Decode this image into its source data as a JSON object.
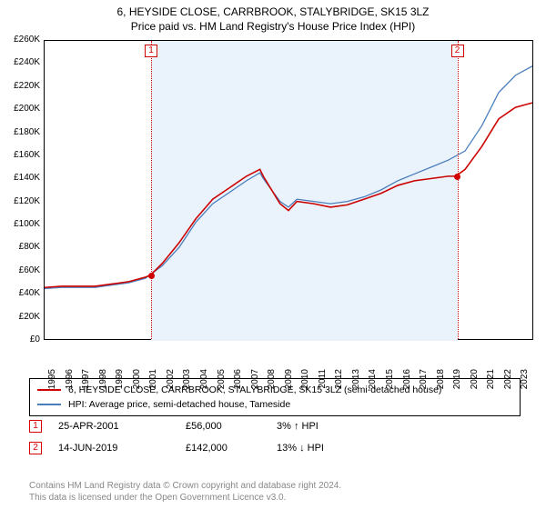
{
  "chart": {
    "title_line1": "6, HEYSIDE CLOSE, CARRBROOK, STALYBRIDGE, SK15 3LZ",
    "title_line2": "Price paid vs. HM Land Registry's House Price Index (HPI)",
    "type": "line",
    "background_color": "#ffffff",
    "shaded_region_color": "#eaf2fb",
    "shaded_region_x": [
      2001.31,
      2019.45
    ],
    "ylim": [
      0,
      260000
    ],
    "ytick_step": 20000,
    "ylabels": [
      "£0",
      "£20K",
      "£40K",
      "£60K",
      "£80K",
      "£100K",
      "£120K",
      "£140K",
      "£160K",
      "£180K",
      "£200K",
      "£220K",
      "£240K",
      "£260K"
    ],
    "xlim": [
      1995,
      2024
    ],
    "xticks": [
      1995,
      1996,
      1997,
      1998,
      1999,
      2000,
      2001,
      2002,
      2003,
      2004,
      2005,
      2006,
      2007,
      2008,
      2009,
      2010,
      2011,
      2012,
      2013,
      2014,
      2015,
      2016,
      2017,
      2018,
      2019,
      2020,
      2021,
      2022,
      2023
    ],
    "series": [
      {
        "name": "property",
        "label": "6, HEYSIDE CLOSE, CARRBROOK, STALYBRIDGE, SK15 3LZ (semi-detached house)",
        "color": "#cc0000",
        "line_width": 1.6,
        "x": [
          1995,
          1996,
          1997,
          1998,
          1999,
          2000,
          2001,
          2001.31,
          2002,
          2003,
          2004,
          2005,
          2006,
          2007,
          2007.8,
          2008,
          2009,
          2009.5,
          2010,
          2011,
          2012,
          2013,
          2014,
          2015,
          2016,
          2017,
          2018,
          2019,
          2019.45,
          2020,
          2021,
          2022,
          2023,
          2024
        ],
        "y": [
          45000,
          46000,
          46000,
          46000,
          48000,
          50000,
          54000,
          56000,
          66000,
          84000,
          105000,
          122000,
          132000,
          142000,
          148000,
          142000,
          118000,
          112000,
          120000,
          118000,
          115000,
          117000,
          122000,
          127000,
          134000,
          138000,
          140000,
          142000,
          142000,
          148000,
          168000,
          192000,
          202000,
          206000
        ]
      },
      {
        "name": "hpi",
        "label": "HPI: Average price, semi-detached house, Tameside",
        "color": "#4a7ebb",
        "line_width": 1.3,
        "x": [
          1995,
          1996,
          1997,
          1998,
          1999,
          2000,
          2001,
          2002,
          2003,
          2004,
          2005,
          2006,
          2007,
          2007.8,
          2008,
          2009,
          2009.5,
          2010,
          2011,
          2012,
          2013,
          2014,
          2015,
          2016,
          2017,
          2018,
          2019,
          2020,
          2021,
          2022,
          2023,
          2024
        ],
        "y": [
          44000,
          45000,
          45000,
          45000,
          47000,
          49000,
          53000,
          64000,
          80000,
          102000,
          118000,
          128000,
          138000,
          145000,
          140000,
          120000,
          115000,
          122000,
          120000,
          118000,
          120000,
          124000,
          130000,
          138000,
          144000,
          150000,
          156000,
          164000,
          186000,
          215000,
          230000,
          238000
        ]
      }
    ],
    "markers": [
      {
        "id": "1",
        "x": 2001.31,
        "y": 56000,
        "date": "25-APR-2001",
        "price": "£56,000",
        "delta": "3% ↑ HPI"
      },
      {
        "id": "2",
        "x": 2019.45,
        "y": 142000,
        "date": "14-JUN-2019",
        "price": "£142,000",
        "delta": "13% ↓ HPI"
      }
    ],
    "marker_color": "#d00000",
    "legend_border": "#000000",
    "axis_font_size": 10,
    "title_font_size": 12
  },
  "footer": {
    "line1": "Contains HM Land Registry data © Crown copyright and database right 2024.",
    "line2": "This data is licensed under the Open Government Licence v3.0."
  }
}
